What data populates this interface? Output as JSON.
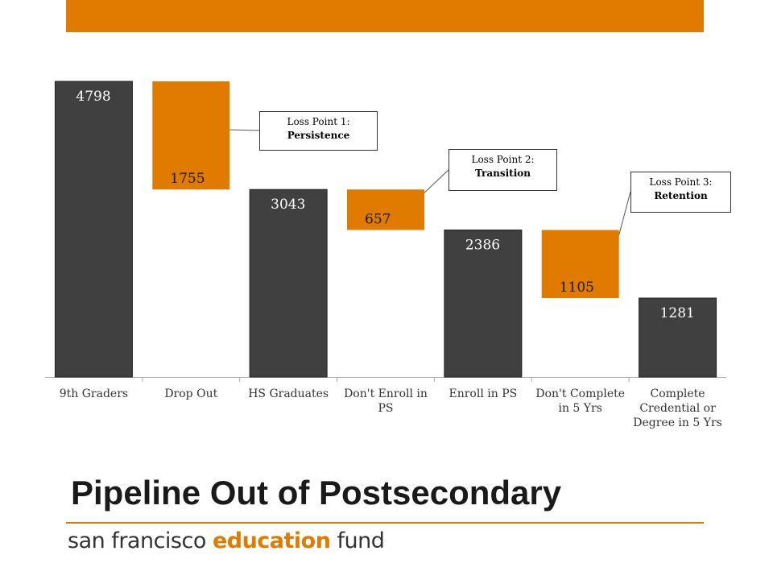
{
  "title": "Pipeline Out of Postsecondary",
  "logo": {
    "part1": "san francisco ",
    "part2": "education",
    "part3": " fund"
  },
  "colors": {
    "accent": "#E07B00",
    "bar_dark": "#404040",
    "text": "#333333"
  },
  "callouts": [
    {
      "line1": "Loss Point 1:",
      "line2": "Persistence"
    },
    {
      "line1": "Loss Point 2:",
      "line2": "Transition"
    },
    {
      "line1": "Loss Point 3:",
      "line2": "Retention"
    }
  ],
  "chart_data": {
    "type": "bar",
    "subtype": "waterfall",
    "categories": [
      "9th Graders",
      "Drop Out",
      "HS Graduates",
      "Don't Enroll in PS",
      "Enroll in PS",
      "Don't Complete in 5 Yrs",
      "Complete Credential or Degree in 5 Yrs"
    ],
    "values": [
      4798,
      1755,
      3043,
      657,
      2386,
      1105,
      1281
    ],
    "bar_kind": [
      "total",
      "loss",
      "total",
      "loss",
      "total",
      "loss",
      "total"
    ],
    "ylim": [
      0,
      4798
    ],
    "grid": false,
    "legend": "none"
  }
}
